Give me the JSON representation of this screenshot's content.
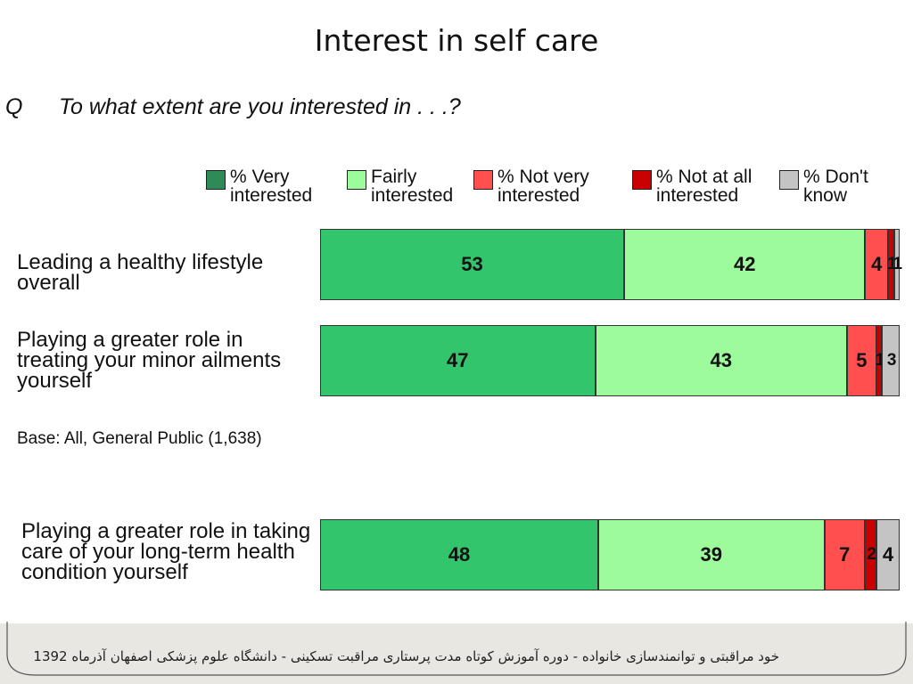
{
  "title": "Interest in self care",
  "question": {
    "letter": "Q",
    "text": "To what extent are you interested in . . .?"
  },
  "colors": {
    "very": "#33c56b",
    "fairly": "#9dfb9c",
    "not_very": "#ff4f4f",
    "not_at_all": "#c90000",
    "dont_know": "#c4c4c4",
    "legend_very": "#2e8b57"
  },
  "legend": [
    {
      "label": "% Very\ninterested",
      "color": "#2e8b57"
    },
    {
      "label": "Fairly\ninterested",
      "color": "#9dfb9c"
    },
    {
      "label": "% Not very\ninterested",
      "color": "#ff4f4f"
    },
    {
      "label": "% Not at all\ninterested",
      "color": "#c90000"
    },
    {
      "label": "% Don't\nknow",
      "color": "#c4c4c4"
    }
  ],
  "base_note": "Base: All, General Public (1,638)",
  "footer": "خود مراقبتی و توانمندسازی خانواده - دوره آموزش کوتاه مدت پرستاری مراقبت تسکینی - دانشگاه علوم پزشکی اصفهان آذرماه 1392",
  "chart_data": {
    "type": "bar",
    "orientation": "horizontal",
    "stacked": true,
    "title": "Interest in self care",
    "categories": [
      "Leading a healthy lifestyle overall",
      "Playing a greater role in treating your minor ailments yourself",
      "Playing a greater role in taking care of your long-term health condition yourself"
    ],
    "series": [
      {
        "name": "% Very interested",
        "values": [
          53,
          47,
          48
        ]
      },
      {
        "name": "Fairly interested",
        "values": [
          42,
          43,
          39
        ]
      },
      {
        "name": "% Not very interested",
        "values": [
          4,
          5,
          7
        ]
      },
      {
        "name": "% Not at all interested",
        "values": [
          1,
          1,
          2
        ]
      },
      {
        "name": "% Don't know",
        "values": [
          1,
          3,
          4
        ]
      }
    ],
    "xlim": [
      0,
      100
    ],
    "legend": "top",
    "grid": false
  }
}
